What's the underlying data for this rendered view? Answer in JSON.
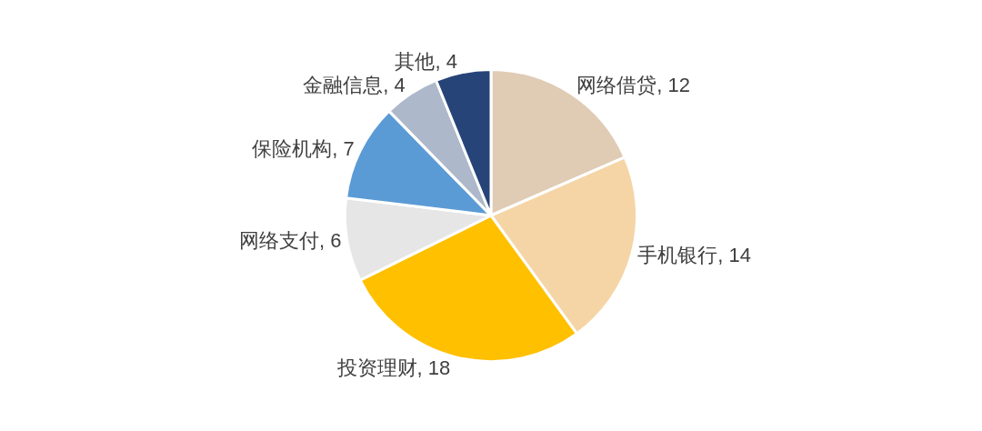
{
  "chart_data": {
    "type": "pie",
    "categories": [
      "网络借贷",
      "手机银行",
      "投资理财",
      "网络支付",
      "保险机构",
      "金融信息",
      "其他"
    ],
    "values": [
      12,
      14,
      18,
      6,
      7,
      4,
      4
    ],
    "value_labels": [
      ", 12",
      ", 14",
      ", 18",
      ", 6",
      ", 7",
      ", 4",
      ", 4"
    ],
    "colors": [
      "#e0cbb5",
      "#f5d5a6",
      "#ffc000",
      "#e6e6e6",
      "#5b9bd5",
      "#adb9ca",
      "#264478"
    ],
    "legend": false
  }
}
